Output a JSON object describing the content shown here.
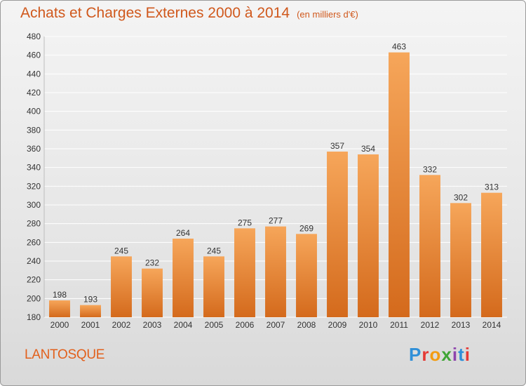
{
  "header": {
    "title": "Achats et Charges Externes 2000 à 2014",
    "unit": "(en milliers d'€)"
  },
  "footer": {
    "commune": "LANTOSQUE",
    "logo_text": "Proxiti",
    "logo_colors": [
      "#2f8fd8",
      "#e53935",
      "#f39c12",
      "#3fa535",
      "#8e44ad",
      "#2f8fd8",
      "#e53935"
    ]
  },
  "colors": {
    "bar_top": "#f6a65a",
    "bar_bottom": "#d46a1c",
    "title": "#d0581c",
    "grid": "#ffffff"
  },
  "chart_data": {
    "type": "bar",
    "title": "Achats et Charges Externes 2000 à 2014",
    "categories": [
      "2000",
      "2001",
      "2002",
      "2003",
      "2004",
      "2005",
      "2006",
      "2007",
      "2008",
      "2009",
      "2010",
      "2011",
      "2012",
      "2013",
      "2014"
    ],
    "values": [
      198,
      193,
      245,
      232,
      264,
      245,
      275,
      277,
      269,
      357,
      354,
      463,
      332,
      302,
      313
    ],
    "ylim": [
      180,
      480
    ],
    "yticks": [
      180,
      200,
      220,
      240,
      260,
      280,
      300,
      320,
      340,
      360,
      380,
      400,
      420,
      440,
      460,
      480
    ],
    "grid": true
  }
}
